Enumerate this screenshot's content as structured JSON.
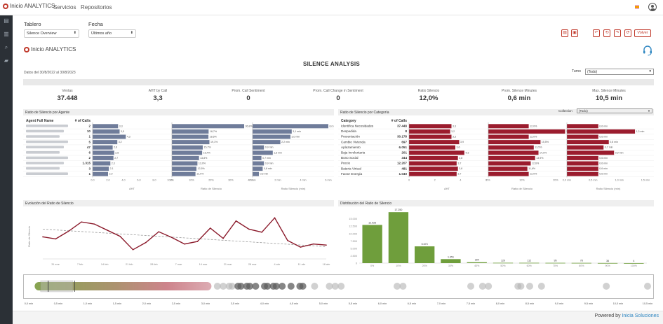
{
  "nav": {
    "brand": "Inicio ANALYTICS",
    "links": [
      "Servicios",
      "Repositorios"
    ]
  },
  "filters": {
    "tablero_label": "Tablero",
    "tablero_value": "Silence Overview",
    "fecha_label": "Fecha",
    "fecha_value": "Últimos año"
  },
  "toolbar": {
    "volver_label": "Volver"
  },
  "report": {
    "logo_text": "Inicio ANALYTICS",
    "title": "SILENCE ANALYSIS",
    "date_range": "Datos del 30/8/2022 al 30/8/2023",
    "turno_label": "Turno",
    "turno_value": "(Todo)"
  },
  "kpis": [
    {
      "label": "Ventas",
      "value": "37.448"
    },
    {
      "label": "AHT by Call",
      "value": "3,3"
    },
    {
      "label": "Prom. Call Sentiment",
      "value": "0"
    },
    {
      "label": "Prom. Call Change in Sentiment",
      "value": "0"
    },
    {
      "label": "Ratio Silencio",
      "value": "12,0%"
    },
    {
      "label": "Prom. Silence Minutes",
      "value": "0,6 min"
    },
    {
      "label": "Max. Silence Minutes",
      "value": "10,5 min"
    }
  ],
  "agent_panel": {
    "title": "Ratio de Silencio por Agente",
    "col_name": "Agent Full Name",
    "col_calls": "# of Calls",
    "calls": [
      "2",
      "10",
      "1",
      "5",
      "47",
      "6",
      "2",
      "1.315",
      "3",
      "1"
    ],
    "aht": [
      3.3,
      3.5,
      4.3,
      3.2,
      2.6,
      2.8,
      2.7,
      2.3,
      2.1,
      2.0
    ],
    "ratio": [
      36.8,
      18.7,
      18.6,
      19.1,
      15.7,
      15.4,
      13.8,
      13.0,
      12.5,
      12.0
    ],
    "silence": [
      6.0,
      3.1,
      3.0,
      2.2,
      0.9,
      1.6,
      0.7,
      0.9,
      0.8,
      0.5
    ],
    "aht_ticks": [
      "0,0",
      "2,0",
      "4,0",
      "6,0",
      "8,0",
      "10,0"
    ],
    "ratio_ticks": [
      "0%",
      "10%",
      "20%",
      "30%",
      "40%"
    ],
    "silence_ticks": [
      "0 min",
      "2 min",
      "4 min",
      "6 min"
    ],
    "aht_axis": "AHT",
    "ratio_axis": "Ratio de Silencio",
    "silence_axis": "Ratio Silencio (min)"
  },
  "category_panel": {
    "title": "Ratio de Silencio por Categoría",
    "collection_label": "Collection",
    "collection_value": "(Todo)",
    "col_name": "Category",
    "col_calls": "# of Calls",
    "categories": [
      "Identifica Necesidades",
      "Despedida",
      "Presentación",
      "Cambio Vivienda",
      "Aplazamiento",
      "Baja Involuntaria",
      "Bono Social",
      "Precio",
      "Bateria Virtual",
      "Factor Energia"
    ],
    "calls": [
      "37.448",
      "8",
      "30.178",
      "697",
      "6.051",
      "201",
      "344",
      "12.207",
      "481",
      "1.040"
    ],
    "aht": [
      3.3,
      3.2,
      3.3,
      3.9,
      3.6,
      4.3,
      3.8,
      3.7,
      3.8,
      3.7
    ],
    "ratio": [
      12.0,
      22.8,
      12.0,
      15.5,
      13.5,
      14.9,
      13.9,
      12.6,
      11.6,
      12.0
    ],
    "silence": [
      0.6,
      1.3,
      0.6,
      0.8,
      0.7,
      0.9,
      0.6,
      0.6,
      0.6,
      0.6
    ],
    "aht_ticks": [
      "0",
      "2",
      "4",
      "6"
    ],
    "ratio_ticks": [
      "0%",
      "10%",
      "20%"
    ],
    "silence_ticks": [
      "0,0 min",
      "0,5 min",
      "1,0 min",
      "1,5 min"
    ],
    "aht_axis": "AHT",
    "ratio_axis": "Ratio de Silencio",
    "silence_axis": "Ratio Silencio (min)"
  },
  "evolution_panel": {
    "title": "Evolución del Ratio de Silencio",
    "ylabel": "Ratio de Silencio",
    "x_ticks": [
      "31 ene",
      "7 feb",
      "14 feb",
      "21 feb",
      "28 feb",
      "7 mar",
      "14 mar",
      "21 mar",
      "28 mar",
      "4 abr",
      "11 abr",
      "18 abr"
    ]
  },
  "distribution_panel": {
    "title": "Distribución del Ratio de Silencio"
  },
  "chart_data": [
    {
      "type": "line",
      "title": "Evolución del Ratio de Silencio",
      "ylabel": "Ratio de Silencio",
      "values": [
        12.3,
        11.9,
        13.4,
        15.2,
        14.8,
        13.6,
        12.4,
        9.8,
        11.2,
        13.3,
        12.2,
        10.9,
        11.4,
        14.0,
        12.0,
        15.4,
        13.8,
        13.2,
        16.0,
        11.6,
        10.3,
        10.9,
        10.7
      ],
      "trend": [
        13.8,
        10.4
      ],
      "ylim": [
        8,
        17
      ],
      "color": "#8b1a2b"
    },
    {
      "type": "bar",
      "title": "Distribución del Ratio de Silencio",
      "categories": [
        "0%",
        "10%",
        "20%",
        "30%",
        "40%",
        "50%",
        "60%",
        "70%",
        "80%",
        "90%",
        "100%"
      ],
      "values": [
        12926,
        17250,
        5673,
        1351,
        304,
        120,
        112,
        95,
        78,
        36,
        4
      ],
      "data_labels": [
        "12.926",
        "17.250",
        "5.673",
        "1.351",
        "304",
        "120",
        "112",
        "95",
        "78",
        "36",
        "4"
      ],
      "y_ticks": [
        "0",
        "2.500",
        "5.000",
        "7.500",
        "10.000",
        "12.500",
        "15.000"
      ],
      "ylim": [
        0,
        18000
      ],
      "color": "#6f9e3c"
    }
  ],
  "strip": {
    "ticks": [
      "0,0 min",
      "0,5 min",
      "1,0 min",
      "1,5 min",
      "2,0 min",
      "2,5 min",
      "3,0 min",
      "3,5 min",
      "4,0 min",
      "4,5 min",
      "5,0 min",
      "5,5 min",
      "6,0 min",
      "6,5 min",
      "7,0 min",
      "7,5 min",
      "8,0 min",
      "8,5 min",
      "9,0 min",
      "9,5 min",
      "10,0 min",
      "10,5 min"
    ]
  },
  "footer": {
    "prefix": "Powered by",
    "link": "Inicia Soluciones"
  }
}
